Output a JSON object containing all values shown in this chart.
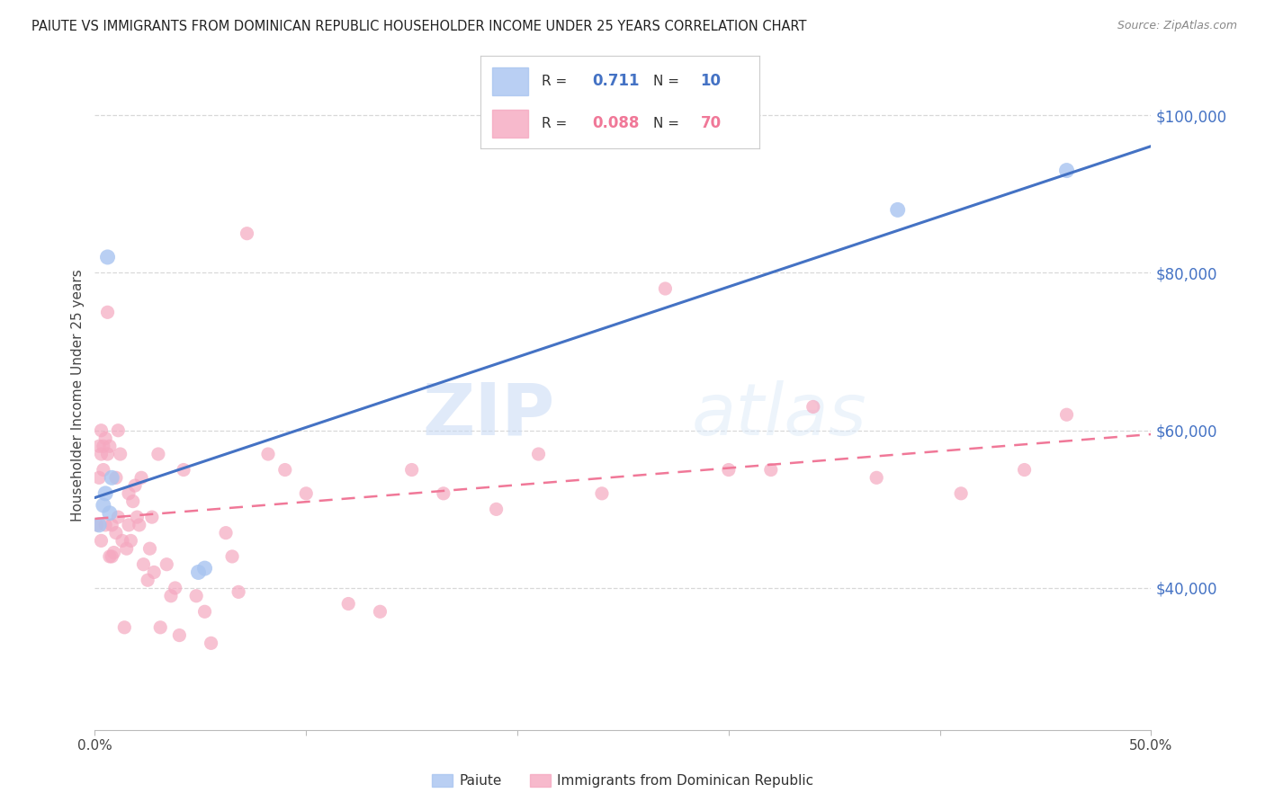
{
  "title": "PAIUTE VS IMMIGRANTS FROM DOMINICAN REPUBLIC HOUSEHOLDER INCOME UNDER 25 YEARS CORRELATION CHART",
  "source": "Source: ZipAtlas.com",
  "ylabel": "Householder Income Under 25 years",
  "right_yticks": [
    "$100,000",
    "$80,000",
    "$60,000",
    "$40,000"
  ],
  "right_ytick_vals": [
    100000,
    80000,
    60000,
    40000
  ],
  "legend_blue_r": "0.711",
  "legend_blue_n": "10",
  "legend_pink_r": "0.088",
  "legend_pink_n": "70",
  "legend_blue_label": "Paiute",
  "legend_pink_label": "Immigrants from Dominican Republic",
  "watermark_zip": "ZIP",
  "watermark_atlas": "atlas",
  "blue_color": "#a8c4f0",
  "pink_color": "#f5a8c0",
  "blue_line_color": "#4472c4",
  "pink_line_color": "#f07898",
  "background_color": "#ffffff",
  "grid_color": "#d8d8d8",
  "xlim": [
    0.0,
    0.5
  ],
  "ylim": [
    22000,
    107000
  ],
  "xticks": [
    0.0,
    0.1,
    0.2,
    0.3,
    0.4,
    0.5
  ],
  "xtick_labels": [
    "0.0%",
    "",
    "",
    "",
    "",
    "50.0%"
  ],
  "paiute_x": [
    0.002,
    0.004,
    0.005,
    0.006,
    0.007,
    0.008,
    0.049,
    0.052,
    0.38,
    0.46
  ],
  "paiute_y": [
    48000,
    50500,
    52000,
    82000,
    49500,
    54000,
    42000,
    42500,
    88000,
    93000
  ],
  "dominican_x": [
    0.001,
    0.002,
    0.002,
    0.003,
    0.003,
    0.003,
    0.004,
    0.004,
    0.005,
    0.005,
    0.006,
    0.006,
    0.007,
    0.007,
    0.008,
    0.008,
    0.009,
    0.01,
    0.01,
    0.011,
    0.011,
    0.012,
    0.013,
    0.014,
    0.015,
    0.016,
    0.016,
    0.017,
    0.018,
    0.019,
    0.02,
    0.021,
    0.022,
    0.023,
    0.025,
    0.026,
    0.027,
    0.028,
    0.03,
    0.031,
    0.034,
    0.036,
    0.038,
    0.04,
    0.042,
    0.048,
    0.052,
    0.055,
    0.062,
    0.065,
    0.068,
    0.072,
    0.082,
    0.09,
    0.1,
    0.12,
    0.135,
    0.15,
    0.165,
    0.19,
    0.21,
    0.24,
    0.27,
    0.3,
    0.32,
    0.34,
    0.37,
    0.41,
    0.44,
    0.46
  ],
  "dominican_y": [
    48000,
    58000,
    54000,
    57000,
    60000,
    46000,
    58000,
    55000,
    59000,
    48000,
    75000,
    57000,
    58000,
    44000,
    44000,
    48000,
    44500,
    47000,
    54000,
    49000,
    60000,
    57000,
    46000,
    35000,
    45000,
    52000,
    48000,
    46000,
    51000,
    53000,
    49000,
    48000,
    54000,
    43000,
    41000,
    45000,
    49000,
    42000,
    57000,
    35000,
    43000,
    39000,
    40000,
    34000,
    55000,
    39000,
    37000,
    33000,
    47000,
    44000,
    39500,
    85000,
    57000,
    55000,
    52000,
    38000,
    37000,
    55000,
    52000,
    50000,
    57000,
    52000,
    78000,
    55000,
    55000,
    63000,
    54000,
    52000,
    55000,
    62000
  ]
}
